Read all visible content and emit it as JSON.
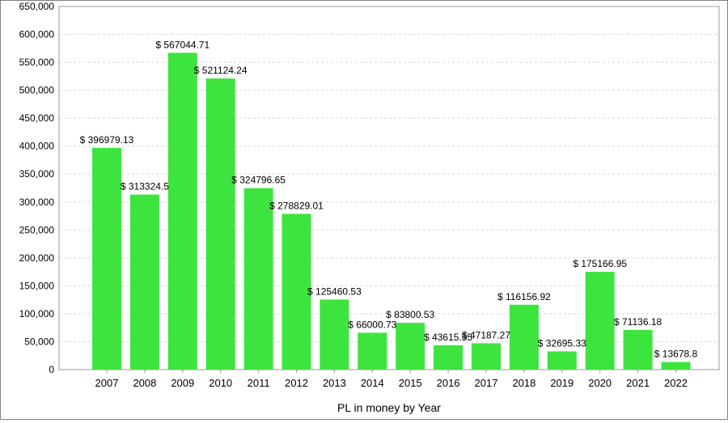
{
  "chart_data": {
    "type": "bar",
    "title": "",
    "xlabel": "PL in money by Year",
    "ylabel": "",
    "ylim": [
      0,
      650000
    ],
    "yticks": [
      0,
      50000,
      100000,
      150000,
      200000,
      250000,
      300000,
      350000,
      400000,
      450000,
      500000,
      550000,
      600000,
      650000
    ],
    "ytick_labels": [
      "0",
      "50,000",
      "100,000",
      "150,000",
      "200,000",
      "250,000",
      "300,000",
      "350,000",
      "400,000",
      "450,000",
      "500,000",
      "550,000",
      "600,000",
      "650,000"
    ],
    "categories": [
      "2007",
      "2008",
      "2009",
      "2010",
      "2011",
      "2012",
      "2013",
      "2014",
      "2015",
      "2016",
      "2017",
      "2018",
      "2019",
      "2020",
      "2021",
      "2022"
    ],
    "values": [
      396979.13,
      313324.5,
      567044.71,
      521124.24,
      324796.65,
      278829.01,
      125460.53,
      66000.73,
      83800.53,
      43615.55,
      47187.27,
      116156.92,
      32695.33,
      175166.95,
      71136.18,
      13678.8
    ],
    "data_labels": [
      "$ 396979.13",
      "$ 313324.5",
      "$ 567044.71",
      "$ 521124.24",
      "$ 324796.65",
      "$ 278829.01",
      "$ 125460.53",
      "$ 66000.73",
      "$ 83800.53",
      "$ 43615.55",
      "$ 47187.27",
      "$ 116156.92",
      "$ 32695.33",
      "$ 175166.95",
      "$ 71136.18",
      "$ 13678.8"
    ],
    "bar_color": "#3ee43e",
    "grid": true,
    "legend": "none"
  }
}
